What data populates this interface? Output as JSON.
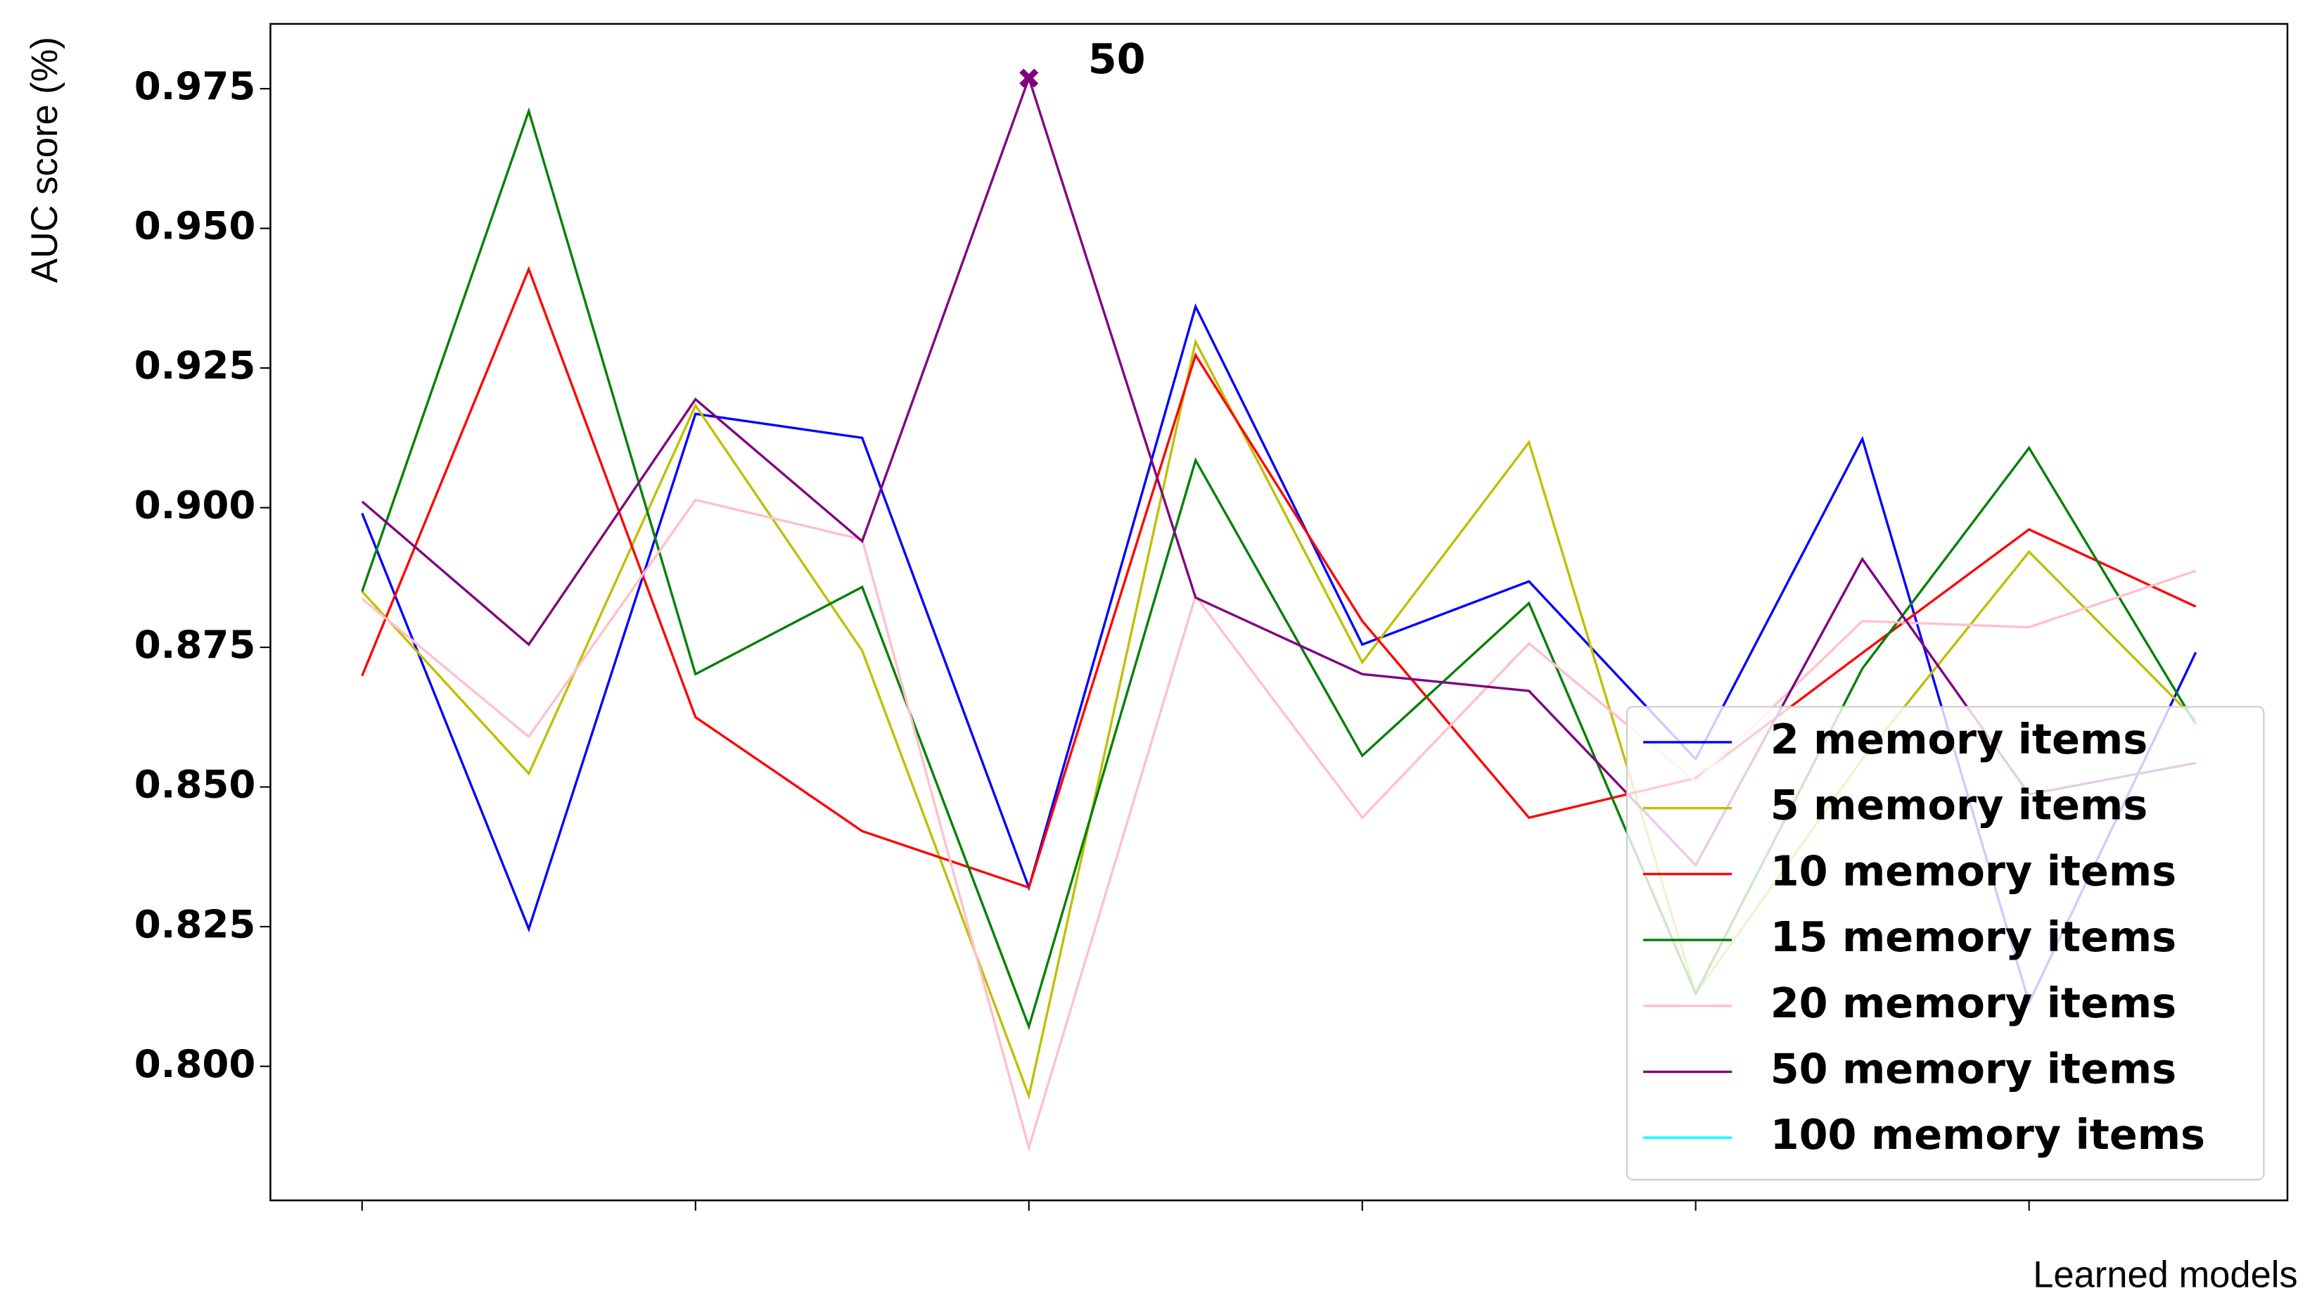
{
  "chart_data": {
    "type": "line",
    "x_label": "Learned models",
    "y_label": "AUC score (%)",
    "x": [
      0,
      1,
      2,
      3,
      4,
      5,
      6,
      7,
      8,
      9,
      10,
      11
    ],
    "xlim": [
      -0.55,
      11.55
    ],
    "xticks": [
      0,
      2,
      4,
      6,
      8,
      10
    ],
    "ylim": [
      0.776,
      0.9866
    ],
    "yticks": [
      {
        "value": 0.8,
        "label": "0.800"
      },
      0.825,
      {
        "value": 0.85,
        "label": "0.850"
      },
      0.875,
      {
        "value": 0.9,
        "label": "0.900"
      },
      0.925,
      {
        "value": 0.95,
        "label": "0.950"
      },
      0.975
    ],
    "grid": false,
    "legend": "lower right",
    "series": [
      {
        "name": "2 memory items",
        "color": "#0000ff",
        "values": [
          0.899,
          0.8246,
          0.9168,
          0.9125,
          0.832,
          0.936,
          0.8755,
          0.8868,
          0.855,
          0.9123,
          0.8114,
          0.8741
        ]
      },
      {
        "name": "5 memory items",
        "color": "#bfbf00",
        "values": [
          0.885,
          0.8524,
          0.9183,
          0.8744,
          0.7947,
          0.9297,
          0.8723,
          0.9117,
          0.813,
          0.855,
          0.8921,
          0.862
        ]
      },
      {
        "name": "10 memory items",
        "color": "#ff0000",
        "values": [
          0.8699,
          0.9427,
          0.8625,
          0.8421,
          0.832,
          0.9273,
          0.8797,
          0.8445,
          0.8516,
          0.874,
          0.8961,
          0.8823
        ]
      },
      {
        "name": "15 memory items",
        "color": "#008000",
        "values": [
          0.885,
          0.971,
          0.8702,
          0.8858,
          0.8071,
          0.9085,
          0.8556,
          0.8829,
          0.813,
          0.8712,
          0.9107,
          0.8612
        ]
      },
      {
        "name": "20 memory items",
        "color": "#ffc0cb",
        "values": [
          0.8837,
          0.859,
          0.9014,
          0.8943,
          0.7854,
          0.8842,
          0.8445,
          0.8757,
          0.851,
          0.8797,
          0.8786,
          0.8887
        ]
      },
      {
        "name": "50 memory items",
        "color": "#800080",
        "values": [
          0.9011,
          0.8755,
          0.9194,
          0.894,
          0.9769,
          0.8839,
          0.8702,
          0.8672,
          0.836,
          0.8908,
          0.8487,
          0.8543
        ]
      },
      {
        "name": "100 memory items",
        "color": "#00ffff",
        "values": [
          null,
          null,
          null,
          null,
          null,
          null,
          null,
          null,
          null,
          null,
          null,
          null
        ]
      }
    ],
    "annotation": {
      "text": "50",
      "series": 5,
      "index": 4
    }
  }
}
